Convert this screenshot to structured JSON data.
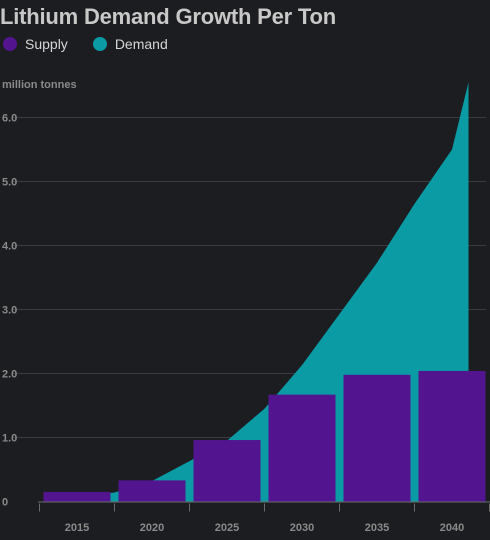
{
  "chart_data": {
    "type": "bar",
    "title": "Lithium Demand Growth Per Ton",
    "ylabel": "million tonnes",
    "xlabel": "",
    "categories": [
      "2015",
      "2020",
      "2025",
      "2030",
      "2035",
      "2040"
    ],
    "series": [
      {
        "name": "Supply",
        "type": "bar",
        "color": "#52158f",
        "values": [
          0.15,
          0.33,
          0.96,
          1.67,
          1.98,
          2.04
        ]
      },
      {
        "name": "Demand",
        "type": "area",
        "color": "#0a9ba4",
        "x": [
          2013.5,
          2015,
          2017.5,
          2020,
          2022.5,
          2025,
          2027.5,
          2030,
          2032.5,
          2035,
          2037.5,
          2040,
          2041.1
        ],
        "values": [
          0.0,
          0.08,
          0.14,
          0.32,
          0.63,
          0.95,
          1.45,
          2.13,
          2.93,
          3.73,
          4.65,
          5.5,
          6.55
        ]
      }
    ],
    "yticks": [
      "0",
      "1.0",
      "2.0",
      "3.0",
      "4.0",
      "5.0",
      "6.0"
    ],
    "ylim": [
      0,
      6.6
    ],
    "grid": true,
    "legend": "top-left"
  }
}
